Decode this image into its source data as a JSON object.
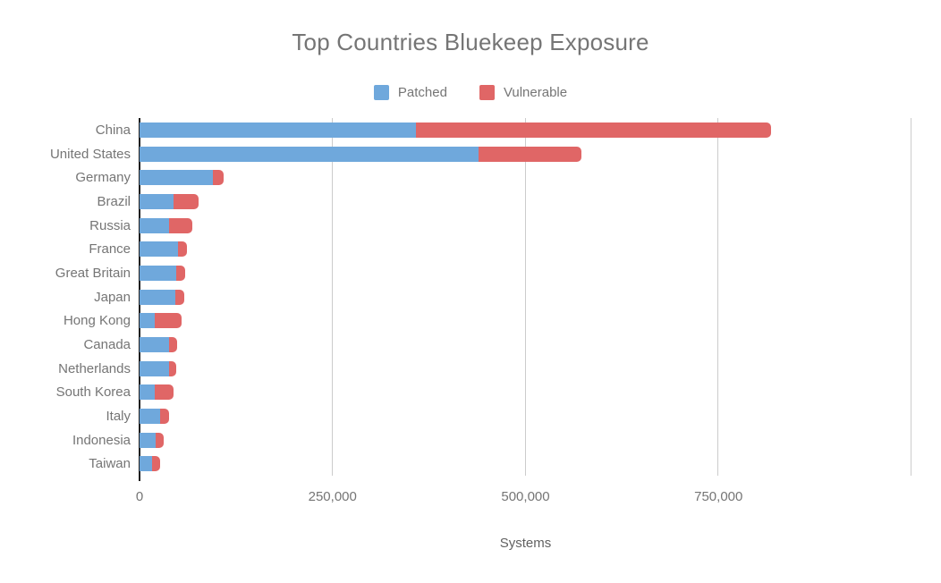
{
  "title": "Top Countries Bluekeep Exposure",
  "legend": [
    {
      "label": "Patched",
      "color": "#6FA8DC"
    },
    {
      "label": "Vulnerable",
      "color": "#E06666"
    }
  ],
  "colors": {
    "patched": "#6FA8DC",
    "vulnerable": "#E06666",
    "gridline": "#CCCCCC",
    "axis_line": "#1F1F1F",
    "text_gray": "#757575",
    "axis_title_gray": "#616161",
    "background": "#FFFFFF"
  },
  "chart_data": {
    "type": "bar",
    "orientation": "horizontal",
    "stacked": true,
    "title": "Top Countries Bluekeep Exposure",
    "xlabel": "Systems",
    "ylabel": "",
    "xlim": [
      0,
      1000000
    ],
    "grid": true,
    "legend_position": "top",
    "xticks": [
      0,
      250000,
      500000,
      750000
    ],
    "xtick_labels": [
      "0",
      "250,000",
      "500,000",
      "750,000"
    ],
    "grid_values": [
      250000,
      500000,
      750000,
      1000000
    ],
    "categories": [
      "China",
      "United States",
      "Germany",
      "Brazil",
      "Russia",
      "France",
      "Great Britain",
      "Japan",
      "Hong Kong",
      "Canada",
      "Netherlands",
      "South Korea",
      "Italy",
      "Indonesia",
      "Taiwan"
    ],
    "series": [
      {
        "name": "Patched",
        "color": "#6FA8DC",
        "values": [
          358000,
          439000,
          95000,
          44000,
          38000,
          50000,
          47000,
          46000,
          20000,
          38000,
          38000,
          20000,
          27000,
          21000,
          16000
        ]
      },
      {
        "name": "Vulnerable",
        "color": "#E06666",
        "values": [
          460000,
          133000,
          14000,
          32000,
          30000,
          12000,
          12000,
          12000,
          35000,
          11000,
          10000,
          24000,
          11000,
          10000,
          11000
        ]
      }
    ]
  }
}
